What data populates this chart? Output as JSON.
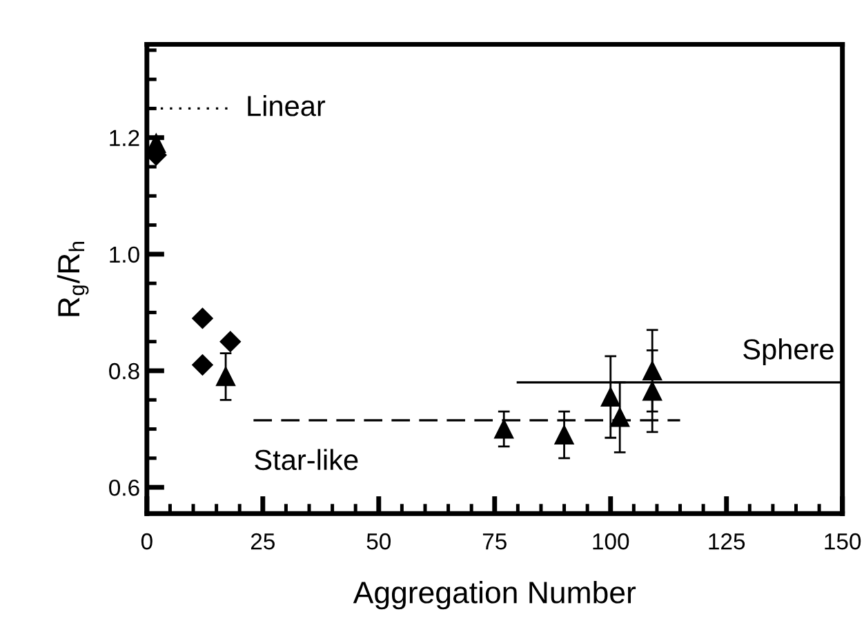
{
  "chart_data": {
    "type": "scatter",
    "xlabel": "Aggregation Number",
    "ylabel": "R$_{g}$/R$_{h}$",
    "xlim": [
      0,
      150
    ],
    "ylim": [
      0.555,
      1.36
    ],
    "xticks": [
      0,
      25,
      50,
      75,
      100,
      125,
      150
    ],
    "yticks": [
      {
        "value": 0.6,
        "label": "0.6"
      },
      {
        "value": 0.8,
        "label": "0.8"
      },
      {
        "value": 1.0,
        "label": "1.0"
      },
      {
        "value": 1.2,
        "label": "1.2"
      }
    ],
    "grid": false,
    "legend": false,
    "series": [
      {
        "marker": "diamond",
        "color": "#000000",
        "x": [
          2,
          12,
          12,
          18
        ],
        "values": [
          1.17,
          0.89,
          0.81,
          0.85
        ]
      },
      {
        "marker": "triangle",
        "color": "#000000",
        "x": [
          2,
          17,
          77,
          90,
          100,
          102,
          109,
          109
        ],
        "values": [
          1.19,
          0.79,
          0.7,
          0.69,
          0.755,
          0.72,
          0.8,
          0.765
        ],
        "errors": [
          null,
          0.04,
          0.03,
          0.04,
          0.07,
          0.06,
          0.07,
          0.07
        ]
      },
      {
        "type": "line",
        "name": "Linear",
        "line_style": "dotted",
        "color": "#000000",
        "x": [
          1,
          18
        ],
        "values": [
          1.25,
          1.25
        ]
      },
      {
        "type": "line",
        "name": "Star-like",
        "line_style": "dashed",
        "color": "#000000",
        "x": [
          23,
          115
        ],
        "values": [
          0.715,
          0.715
        ]
      },
      {
        "type": "line",
        "name": "Sphere",
        "line_style": "solid",
        "color": "#000000",
        "x": [
          80,
          150
        ],
        "values": [
          0.78,
          0.78
        ]
      }
    ]
  }
}
